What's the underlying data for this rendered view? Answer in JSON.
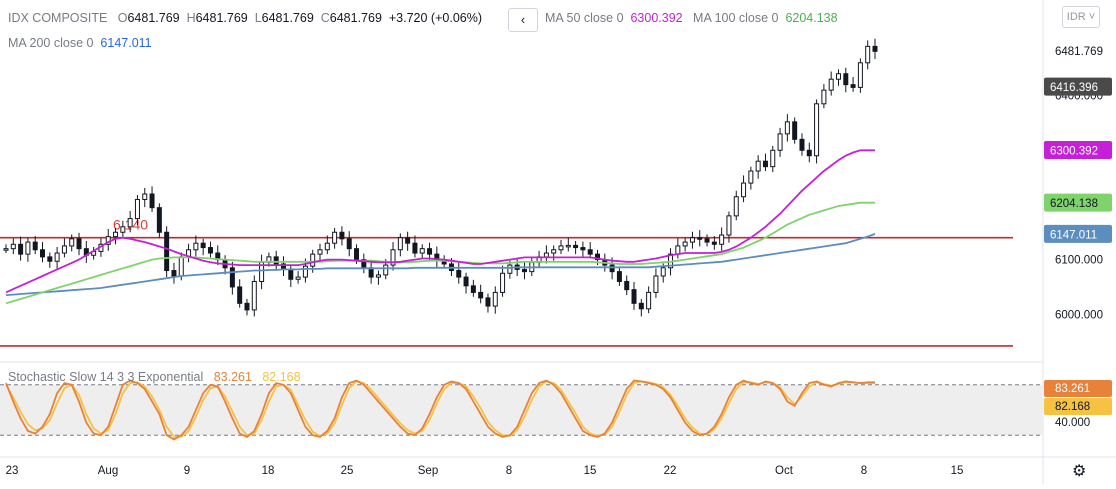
{
  "symbol": {
    "name": "IDX COMPOSITE",
    "o_label": "O",
    "o": "6481.769",
    "h_label": "H",
    "h": "6481.769",
    "l_label": "L",
    "l": "6481.769",
    "c_label": "C",
    "c": "6481.769",
    "change": "+3.720 (+0.06%)"
  },
  "indicators": {
    "ma50_label": "MA 50 close 0",
    "ma50_value": "6300.392",
    "ma100_label": "MA 100 close 0",
    "ma100_value": "6204.138",
    "ma200_label": "MA 200 close 0",
    "ma200_value": "6147.011"
  },
  "controls": {
    "back": "‹",
    "currency": "IDR",
    "currency_arrow": "˅"
  },
  "annotation": {
    "level_text": "6.140",
    "color": "#e53935"
  },
  "colors": {
    "candle": "#131722",
    "ma50": "#c51fd7",
    "ma100": "#7ed36a",
    "ma200": "#5b8dbf",
    "hline": "#c62828",
    "stoch_k": "#e8813a",
    "stoch_d": "#f5c242",
    "band": "#eeeeee"
  },
  "oscillator": {
    "label": "Stochastic Slow 14 3 3 Exponential",
    "k_value": "83.261",
    "d_value": "82.168",
    "axis_tick": "40.000",
    "upper": 80,
    "lower": 20
  },
  "badges": {
    "last": "6481.769",
    "ma50": "6300.392",
    "ma100": "6204.138",
    "ma200": "6147.011",
    "cross": "6416.396"
  },
  "chart_data": {
    "type": "candlestick",
    "price_axis_ticks": [
      "6481.769",
      "6400.000",
      "6100.000",
      "6000.000"
    ],
    "x_ticks": [
      "23",
      "Aug",
      "9",
      "18",
      "25",
      "Sep",
      "8",
      "15",
      "22",
      "Oct",
      "8",
      "15"
    ],
    "horizontal_levels": [
      6140,
      5942
    ],
    "ylim": [
      5920,
      6520
    ],
    "close_series": [
      6120,
      6128,
      6110,
      6132,
      6118,
      6105,
      6097,
      6112,
      6125,
      6138,
      6120,
      6108,
      6115,
      6128,
      6142,
      6150,
      6160,
      6175,
      6210,
      6220,
      6195,
      6150,
      6080,
      6070,
      6105,
      6118,
      6130,
      6122,
      6112,
      6100,
      6085,
      6050,
      6020,
      6008,
      6060,
      6095,
      6105,
      6092,
      6082,
      6064,
      6068,
      6088,
      6110,
      6118,
      6130,
      6150,
      6138,
      6120,
      6100,
      6085,
      6068,
      6072,
      6090,
      6118,
      6140,
      6130,
      6112,
      6120,
      6110,
      6100,
      6092,
      6080,
      6068,
      6052,
      6040,
      6030,
      6015,
      6040,
      6075,
      6090,
      6082,
      6078,
      6095,
      6105,
      6112,
      6118,
      6125,
      6126,
      6122,
      6118,
      6110,
      6100,
      6090,
      6078,
      6060,
      6045,
      6020,
      6010,
      6040,
      6070,
      6085,
      6110,
      6125,
      6132,
      6140,
      6138,
      6132,
      6128,
      6145,
      6180,
      6215,
      6240,
      6262,
      6280,
      6270,
      6300,
      6330,
      6352,
      6320,
      6300,
      6290,
      6385,
      6410,
      6430,
      6440,
      6420,
      6415,
      6460,
      6490,
      6481
    ],
    "ma50": [
      6040,
      6046,
      6052,
      6058,
      6064,
      6070,
      6076,
      6082,
      6088,
      6094,
      6100,
      6108,
      6116,
      6124,
      6132,
      6138,
      6140,
      6138,
      6135,
      6132,
      6128,
      6124,
      6120,
      6115,
      6110,
      6106,
      6102,
      6098,
      6095,
      6093,
      6092,
      6091,
      6090,
      6090,
      6090,
      6090,
      6090,
      6090,
      6090,
      6090,
      6090,
      6092,
      6095,
      6098,
      6100,
      6100,
      6100,
      6099,
      6098,
      6097,
      6096,
      6095,
      6095,
      6095,
      6096,
      6098,
      6100,
      6102,
      6102,
      6101,
      6100,
      6098,
      6096,
      6094,
      6092,
      6092,
      6094,
      6096,
      6098,
      6100,
      6102,
      6104,
      6104,
      6104,
      6104,
      6104,
      6104,
      6104,
      6104,
      6104,
      6104,
      6102,
      6100,
      6098,
      6097,
      6096,
      6096,
      6098,
      6100,
      6102,
      6105,
      6108,
      6110,
      6112,
      6112,
      6112,
      6112,
      6112,
      6114,
      6118,
      6124,
      6132,
      6140,
      6150,
      6160,
      6172,
      6184,
      6198,
      6212,
      6226,
      6238,
      6250,
      6262,
      6272,
      6282,
      6290,
      6296,
      6300,
      6300,
      6300
    ],
    "ma100": [
      6020,
      6024,
      6028,
      6032,
      6036,
      6040,
      6044,
      6048,
      6052,
      6056,
      6060,
      6064,
      6068,
      6072,
      6076,
      6080,
      6084,
      6088,
      6092,
      6096,
      6100,
      6102,
      6103,
      6104,
      6104,
      6104,
      6104,
      6103,
      6102,
      6101,
      6100,
      6099,
      6098,
      6097,
      6096,
      6096,
      6096,
      6096,
      6096,
      6096,
      6096,
      6096,
      6096,
      6096,
      6097,
      6098,
      6098,
      6098,
      6098,
      6098,
      6098,
      6097,
      6096,
      6095,
      6095,
      6095,
      6096,
      6097,
      6098,
      6098,
      6098,
      6097,
      6096,
      6095,
      6094,
      6093,
      6093,
      6093,
      6093,
      6094,
      6095,
      6096,
      6096,
      6096,
      6096,
      6096,
      6096,
      6096,
      6096,
      6096,
      6096,
      6095,
      6094,
      6093,
      6092,
      6092,
      6092,
      6092,
      6093,
      6094,
      6095,
      6096,
      6098,
      6100,
      6102,
      6104,
      6106,
      6108,
      6110,
      6114,
      6118,
      6122,
      6128,
      6134,
      6140,
      6148,
      6156,
      6164,
      6170,
      6176,
      6182,
      6186,
      6190,
      6194,
      6198,
      6200,
      6202,
      6204,
      6204,
      6204
    ],
    "ma200": [
      6035,
      6036,
      6037,
      6038,
      6039,
      6040,
      6041,
      6042,
      6043,
      6044,
      6045,
      6046,
      6047,
      6048,
      6050,
      6052,
      6054,
      6056,
      6058,
      6060,
      6062,
      6064,
      6066,
      6068,
      6070,
      6071,
      6072,
      6073,
      6074,
      6075,
      6076,
      6077,
      6078,
      6079,
      6080,
      6080,
      6081,
      6081,
      6082,
      6082,
      6082,
      6083,
      6083,
      6083,
      6084,
      6084,
      6084,
      6084,
      6084,
      6084,
      6084,
      6084,
      6084,
      6084,
      6084,
      6084,
      6085,
      6085,
      6085,
      6085,
      6085,
      6085,
      6085,
      6085,
      6085,
      6085,
      6085,
      6085,
      6085,
      6085,
      6086,
      6086,
      6086,
      6086,
      6086,
      6086,
      6086,
      6086,
      6086,
      6086,
      6086,
      6086,
      6086,
      6086,
      6086,
      6086,
      6086,
      6086,
      6086,
      6087,
      6088,
      6089,
      6090,
      6091,
      6092,
      6093,
      6094,
      6095,
      6096,
      6098,
      6100,
      6102,
      6104,
      6106,
      6108,
      6110,
      6112,
      6114,
      6116,
      6118,
      6120,
      6122,
      6124,
      6126,
      6128,
      6130,
      6134,
      6138,
      6142,
      6147
    ],
    "stoch_k": [
      82,
      60,
      40,
      25,
      22,
      30,
      45,
      70,
      82,
      80,
      60,
      35,
      22,
      20,
      30,
      55,
      80,
      85,
      82,
      75,
      60,
      45,
      20,
      15,
      20,
      30,
      50,
      70,
      80,
      78,
      60,
      40,
      22,
      18,
      25,
      45,
      70,
      82,
      80,
      70,
      50,
      30,
      20,
      18,
      25,
      40,
      65,
      82,
      85,
      80,
      70,
      60,
      50,
      40,
      30,
      22,
      20,
      28,
      45,
      65,
      80,
      84,
      82,
      75,
      60,
      45,
      30,
      22,
      18,
      20,
      30,
      50,
      70,
      82,
      85,
      80,
      70,
      55,
      40,
      25,
      20,
      18,
      22,
      35,
      55,
      75,
      85,
      84,
      82,
      80,
      75,
      65,
      50,
      35,
      25,
      20,
      22,
      30,
      45,
      65,
      80,
      85,
      82,
      80,
      84,
      82,
      75,
      60,
      55,
      70,
      82,
      84,
      80,
      78,
      82,
      84,
      83,
      82,
      83,
      83
    ],
    "stoch_d": [
      80,
      65,
      48,
      33,
      26,
      28,
      38,
      58,
      76,
      80,
      68,
      45,
      28,
      22,
      26,
      45,
      70,
      82,
      83,
      78,
      66,
      50,
      30,
      18,
      18,
      25,
      42,
      62,
      76,
      78,
      66,
      48,
      30,
      20,
      22,
      38,
      60,
      78,
      80,
      74,
      56,
      38,
      24,
      19,
      22,
      34,
      56,
      76,
      84,
      82,
      74,
      64,
      54,
      44,
      34,
      26,
      22,
      25,
      38,
      58,
      75,
      82,
      82,
      78,
      66,
      52,
      36,
      26,
      20,
      19,
      26,
      42,
      62,
      78,
      84,
      82,
      74,
      60,
      46,
      30,
      22,
      19,
      21,
      30,
      48,
      68,
      82,
      84,
      83,
      81,
      77,
      68,
      55,
      40,
      29,
      22,
      21,
      27,
      40,
      58,
      75,
      83,
      83,
      81,
      83,
      82,
      77,
      65,
      57,
      66,
      78,
      83,
      81,
      79,
      81,
      83,
      83,
      82,
      82,
      82
    ]
  }
}
